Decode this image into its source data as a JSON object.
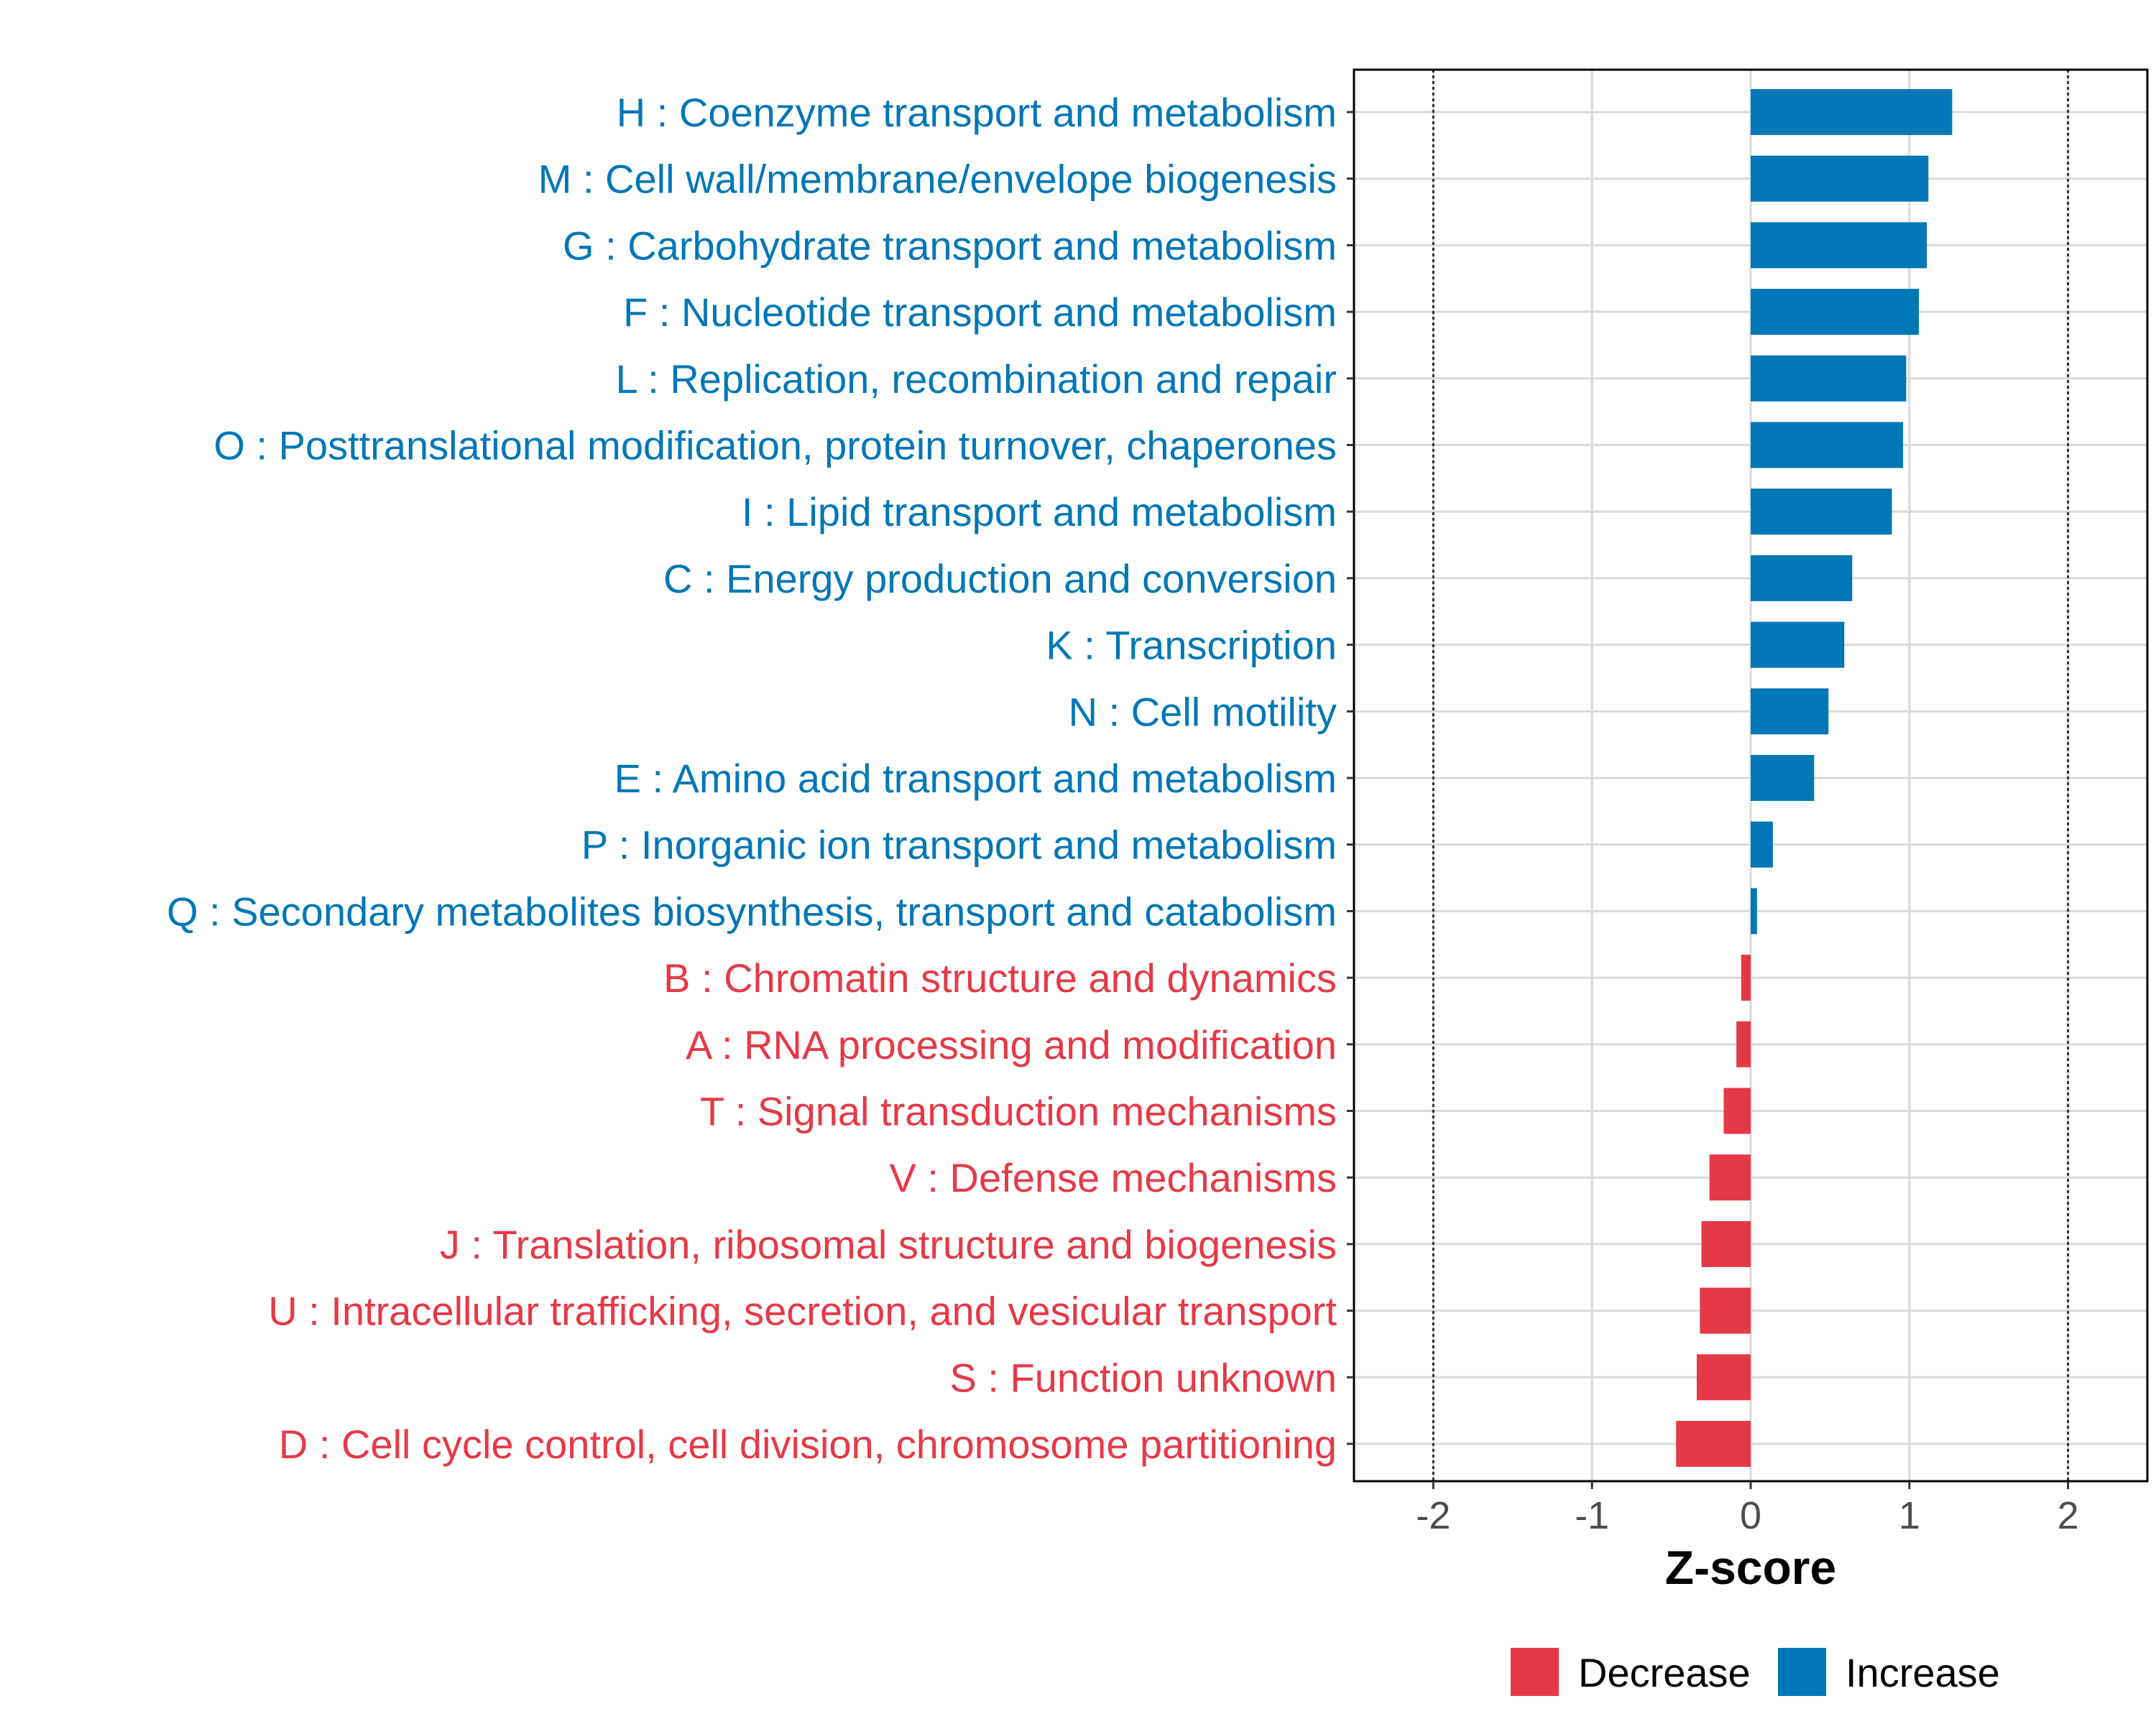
{
  "chart_data": {
    "type": "bar",
    "orientation": "horizontal",
    "title": "",
    "xlabel": "Z-score",
    "ylabel": "",
    "xlim": [
      -2.5,
      2.5
    ],
    "x_ticks": [
      "-2",
      "-1",
      "0",
      "1",
      "2"
    ],
    "reference_lines": [
      -2,
      2
    ],
    "grid": true,
    "legend_position": "bottom",
    "legend": [
      {
        "name": "Decrease",
        "color": "#e63946"
      },
      {
        "name": "Increase",
        "color": "#0077b6"
      }
    ],
    "categories": [
      "H : Coenzyme transport and metabolism",
      "M : Cell wall/membrane/envelope biogenesis",
      "G : Carbohydrate transport and metabolism",
      "F : Nucleotide transport and metabolism",
      "L : Replication, recombination and repair",
      "O : Posttranslational modification, protein turnover, chaperones",
      "I : Lipid transport and metabolism",
      "C : Energy production and conversion",
      "K : Transcription",
      "N : Cell motility",
      "E : Amino acid transport and metabolism",
      "P : Inorganic ion transport and metabolism",
      "Q : Secondary metabolites biosynthesis, transport and catabolism",
      "B : Chromatin structure and dynamics",
      "A : RNA processing and modification",
      "T : Signal transduction mechanisms",
      "V : Defense mechanisms",
      "J : Translation, ribosomal structure and biogenesis",
      "U : Intracellular trafficking, secretion, and vesicular transport",
      "S : Function unknown",
      "D : Cell cycle control, cell division, chromosome partitioning"
    ],
    "values": [
      1.27,
      1.12,
      1.11,
      1.06,
      0.98,
      0.96,
      0.89,
      0.64,
      0.59,
      0.49,
      0.4,
      0.14,
      0.04,
      -0.06,
      -0.09,
      -0.17,
      -0.26,
      -0.31,
      -0.32,
      -0.34,
      -0.47
    ],
    "groups": [
      "Increase",
      "Increase",
      "Increase",
      "Increase",
      "Increase",
      "Increase",
      "Increase",
      "Increase",
      "Increase",
      "Increase",
      "Increase",
      "Increase",
      "Increase",
      "Decrease",
      "Decrease",
      "Decrease",
      "Decrease",
      "Decrease",
      "Decrease",
      "Decrease",
      "Decrease"
    ]
  }
}
